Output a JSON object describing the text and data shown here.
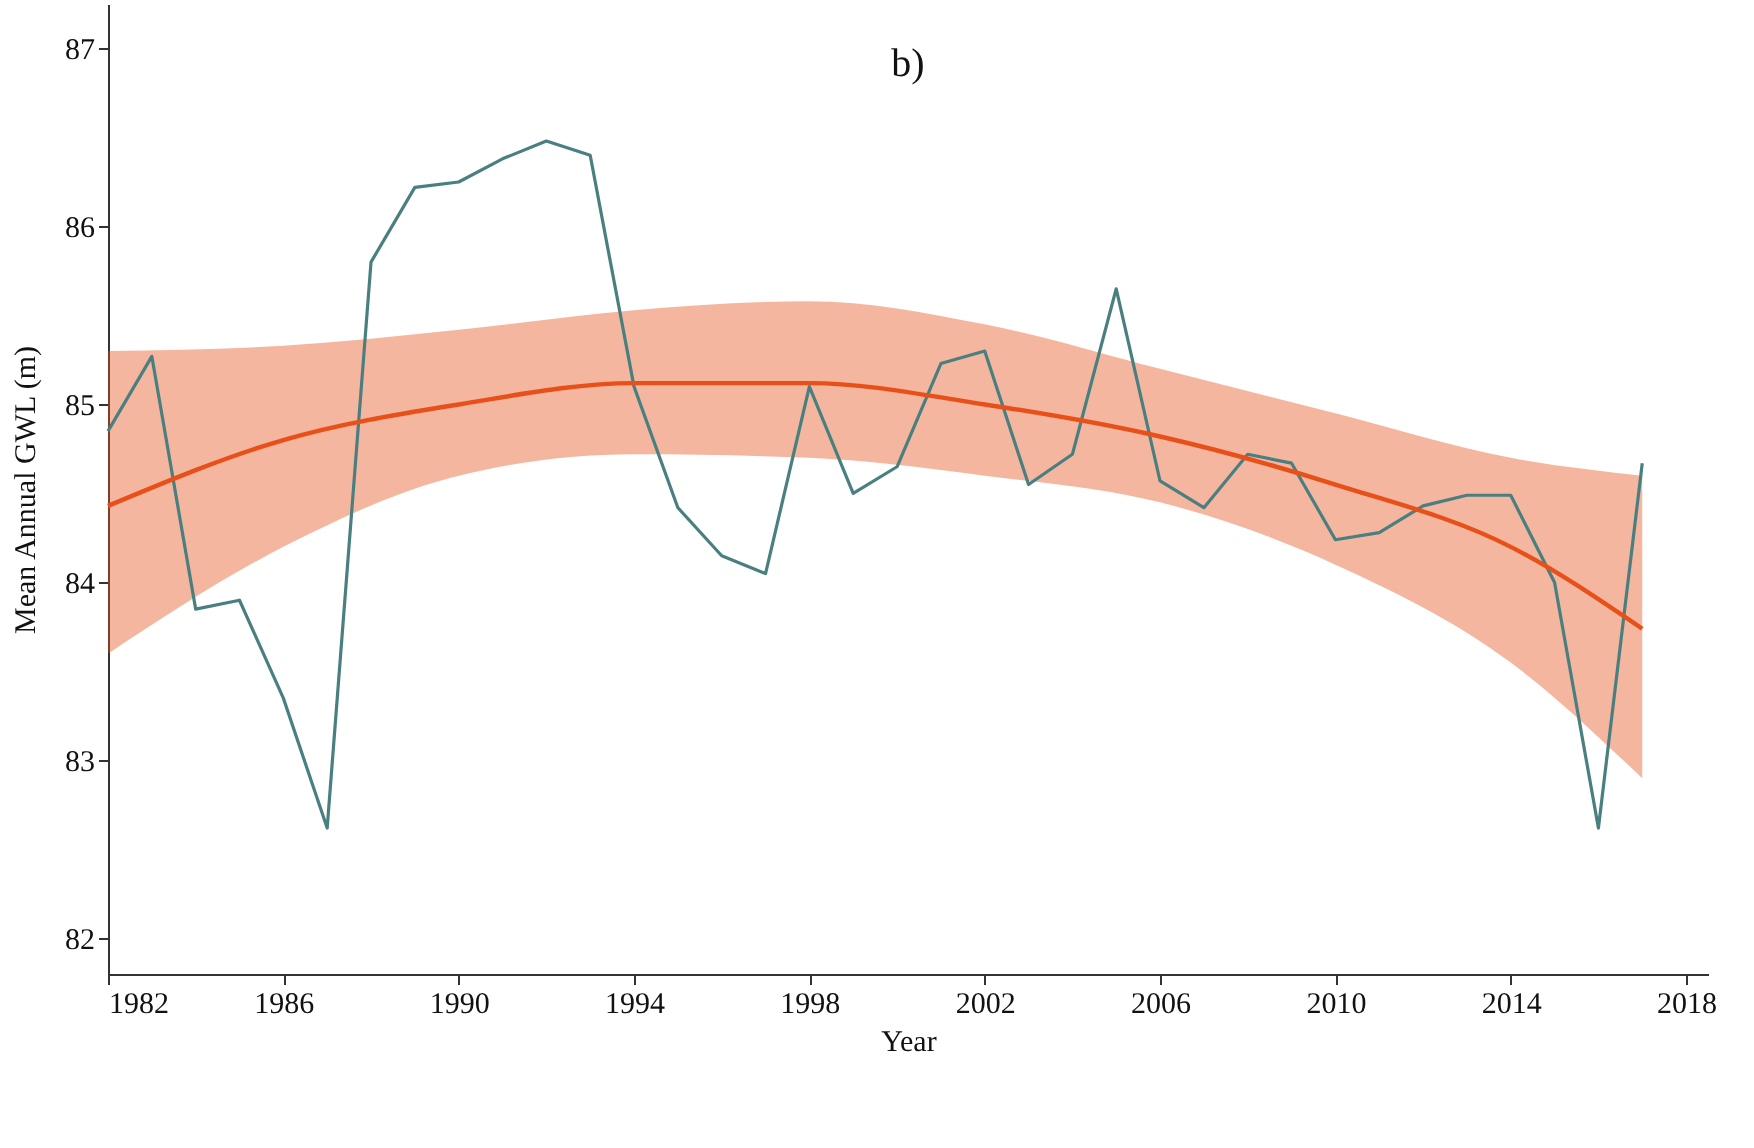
{
  "chart_data": {
    "type": "line",
    "title": "b)",
    "xlabel": "Year",
    "ylabel": "Mean Annual GWL (m)",
    "x": [
      1982,
      1983,
      1984,
      1985,
      1986,
      1987,
      1988,
      1989,
      1990,
      1991,
      1992,
      1993,
      1994,
      1995,
      1996,
      1997,
      1998,
      1999,
      2000,
      2001,
      2002,
      2003,
      2004,
      2005,
      2006,
      2007,
      2008,
      2009,
      2010,
      2011,
      2012,
      2013,
      2014,
      2015,
      2016,
      2017
    ],
    "xlim": [
      1982,
      2018.5
    ],
    "xticks": [
      1982,
      1986,
      1990,
      1994,
      1998,
      2002,
      2006,
      2010,
      2014,
      2018
    ],
    "ylim": [
      81.8,
      87.25
    ],
    "yticks": [
      82,
      83,
      84,
      85,
      86,
      87
    ],
    "grid": false,
    "series": [
      {
        "color": "#4a7f80",
        "values": [
          84.85,
          85.27,
          83.85,
          83.9,
          83.35,
          82.62,
          85.8,
          86.22,
          86.25,
          86.38,
          86.48,
          86.4,
          85.1,
          84.42,
          84.15,
          84.05,
          85.1,
          84.5,
          84.65,
          85.23,
          85.3,
          84.55,
          84.72,
          85.65,
          84.57,
          84.42,
          84.72,
          84.67,
          84.24,
          84.28,
          84.43,
          84.49,
          84.49,
          84.0,
          82.62,
          84.67
        ]
      },
      {
        "type": "line",
        "color": "#e8501a",
        "x": [
          1982,
          1986,
          1990,
          1994,
          1998,
          2002,
          2006,
          2010,
          2014,
          2017
        ],
        "values": [
          84.43,
          84.8,
          85.0,
          85.12,
          85.12,
          85.0,
          84.82,
          84.55,
          84.2,
          83.74
        ],
        "lower": [
          83.6,
          84.2,
          84.6,
          84.72,
          84.7,
          84.6,
          84.45,
          84.1,
          83.55,
          82.9
        ],
        "upper": [
          85.3,
          85.33,
          85.42,
          85.53,
          85.58,
          85.45,
          85.2,
          84.95,
          84.7,
          84.6
        ]
      }
    ]
  }
}
